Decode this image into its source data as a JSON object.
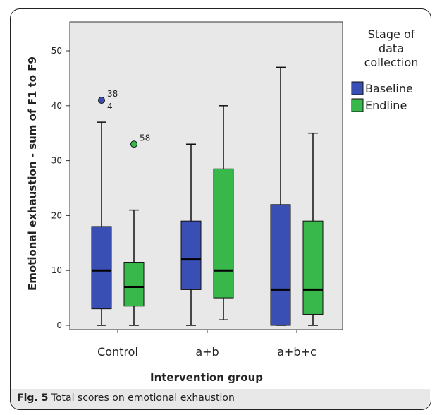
{
  "caption": {
    "label": "Fig. 5",
    "text": "Total scores on emotional exhaustion"
  },
  "chart_data": {
    "type": "boxplot",
    "title": "",
    "xlabel": "Intervention group",
    "ylabel": "Emotional exhaustion - sum of F1 to F9",
    "ylim": [
      0,
      55
    ],
    "yticks": [
      0,
      10,
      20,
      30,
      40,
      50
    ],
    "grid": false,
    "legend": {
      "title_lines": [
        "Stage of",
        "data",
        "collection"
      ],
      "placement": "right"
    },
    "categories": [
      "Control",
      "a+b",
      "a+b+c"
    ],
    "series": [
      {
        "name": "Baseline",
        "color": "#3a4fb3",
        "boxes": [
          {
            "min": 0,
            "q1": 3,
            "median": 10,
            "q3": 18,
            "max": 37
          },
          {
            "min": 0,
            "q1": 6.5,
            "median": 12,
            "q3": 19,
            "max": 33
          },
          {
            "min": 0,
            "q1": 0,
            "median": 6.5,
            "q3": 22,
            "max": 47
          }
        ]
      },
      {
        "name": "Endline",
        "color": "#38b84a",
        "boxes": [
          {
            "min": 0,
            "q1": 3.5,
            "median": 7,
            "q3": 11.5,
            "max": 21
          },
          {
            "min": 1,
            "q1": 5,
            "median": 10,
            "q3": 28.5,
            "max": 40
          },
          {
            "min": 0,
            "q1": 2,
            "median": 6.5,
            "q3": 19,
            "max": 35
          }
        ]
      }
    ],
    "outliers": [
      {
        "category": "Control",
        "series": "Baseline",
        "value": 41,
        "labels": [
          "38",
          "4"
        ]
      },
      {
        "category": "Control",
        "series": "Endline",
        "value": 33,
        "labels": [
          "58"
        ]
      }
    ]
  }
}
